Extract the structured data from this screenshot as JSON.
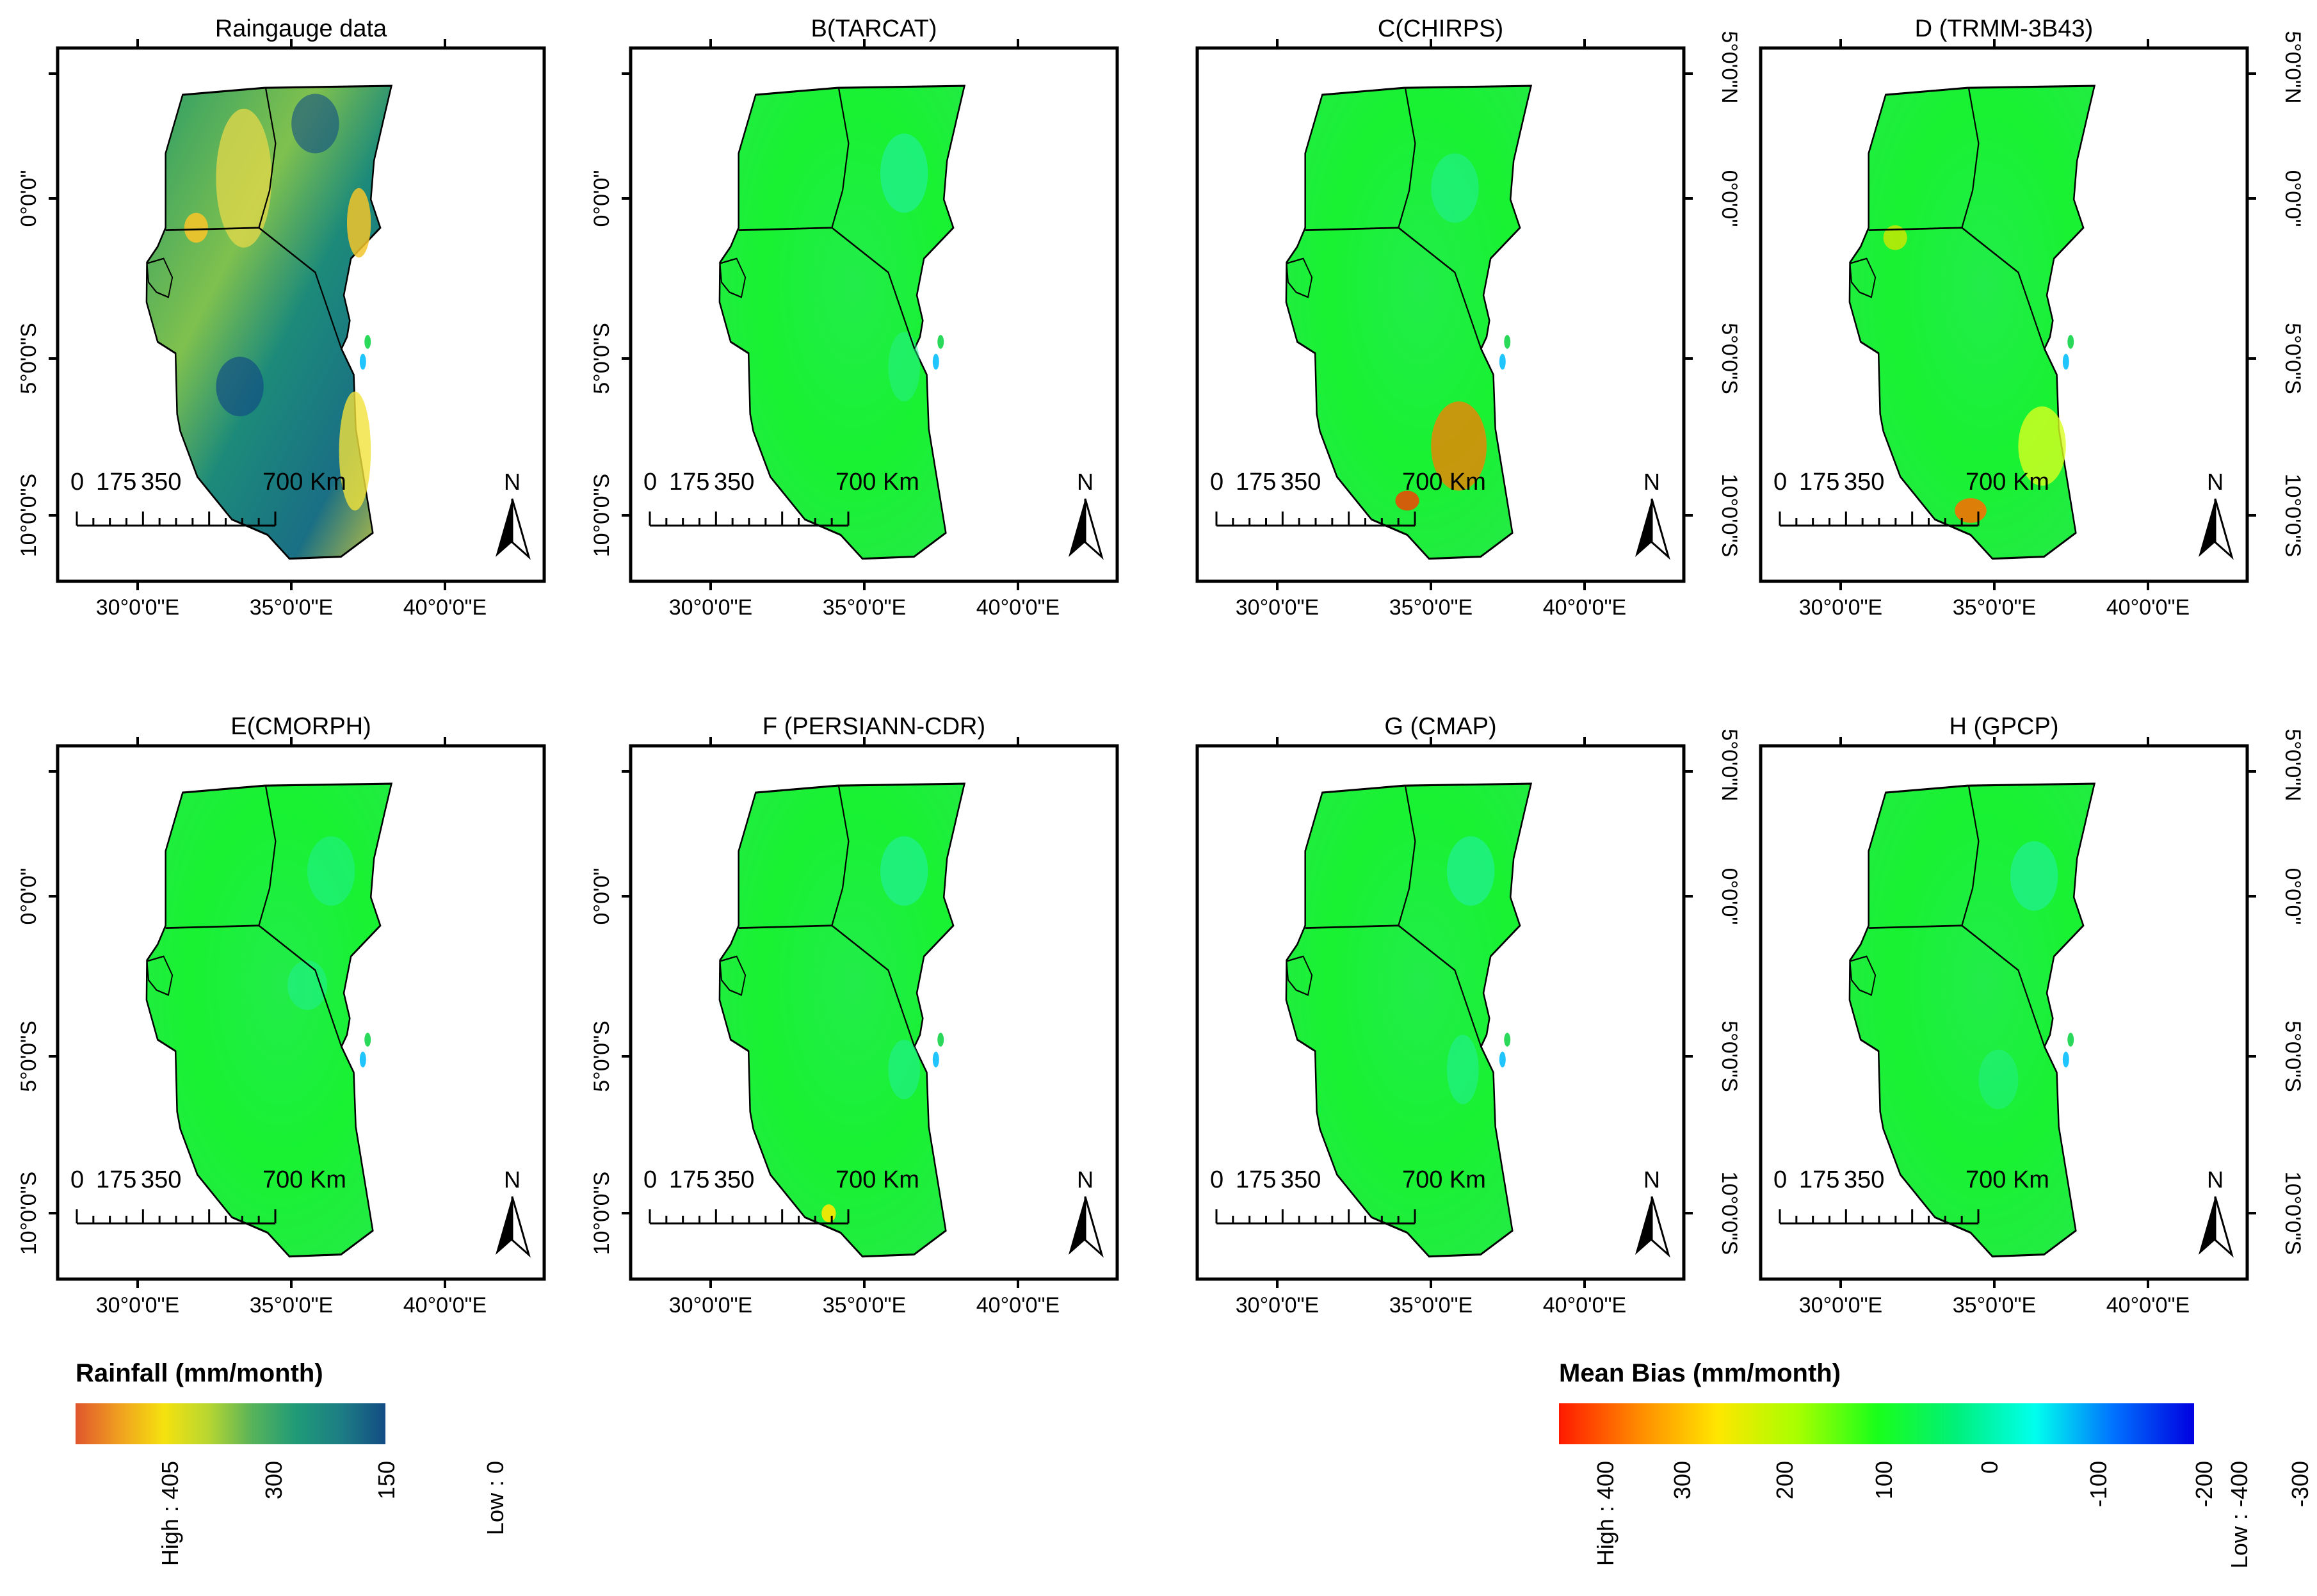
{
  "figure": {
    "panels": [
      {
        "title": "Raingauge data",
        "kind": "rain"
      },
      {
        "title": "B(TARCAT)",
        "kind": "bias"
      },
      {
        "title": "C(CHIRPS)",
        "kind": "bias"
      },
      {
        "title": "D (TRMM-3B43)",
        "kind": "bias"
      },
      {
        "title": "E(CMORPH)",
        "kind": "bias"
      },
      {
        "title": "F (PERSIANN-CDR)",
        "kind": "bias"
      },
      {
        "title": "G (CMAP)",
        "kind": "bias"
      },
      {
        "title": "H (GPCP)",
        "kind": "bias"
      }
    ],
    "lon_ticks": [
      "30°0'0\"E",
      "35°0'0\"E",
      "40°0'0\"E"
    ],
    "lat_ticks": [
      "5°0'0\"N",
      "0°0'0\"",
      "5°0'0\"S",
      "10°0'0\"S"
    ],
    "scalebar": {
      "labels": [
        "0",
        "175",
        "350",
        "700 Km"
      ]
    },
    "north_label": "N"
  },
  "legends": {
    "rainfall": {
      "title": "Rainfall (mm/month)",
      "labels": [
        "High : 405",
        "300",
        "150",
        "Low : 0"
      ],
      "colors": [
        "#e0562c",
        "#f0a020",
        "#f5e20e",
        "#b8d631",
        "#57b35a",
        "#1f9a78",
        "#1d7d84",
        "#124d84"
      ]
    },
    "bias": {
      "title": "Mean Bias (mm/month)",
      "labels": [
        "High : 400",
        "300",
        "200",
        "100",
        "0",
        "-100",
        "-200",
        "-300",
        "Low : -400"
      ],
      "colors": [
        "#ff1a00",
        "#ff8a00",
        "#ffe600",
        "#a8ff00",
        "#1aff1a",
        "#00f07a",
        "#00ffee",
        "#0070ff",
        "#0000e0"
      ]
    }
  }
}
